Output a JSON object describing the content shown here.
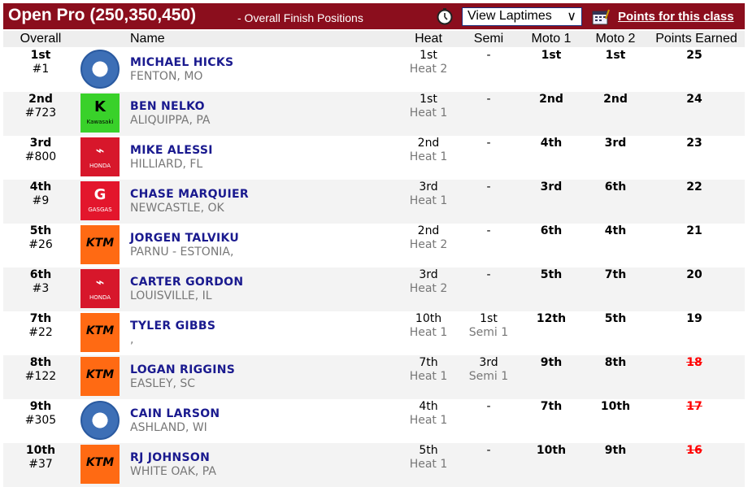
{
  "header": {
    "title": "Open Pro (250,350,450)",
    "subtitle": "- Overall Finish Positions",
    "laptimes_select": "View Laptimes",
    "points_link": "Points for this class"
  },
  "columns": [
    "Overall",
    "Name",
    "Heat",
    "Semi",
    "Moto 1",
    "Moto 2",
    "Points Earned"
  ],
  "colors": {
    "header_bg": "#8b0e1d",
    "name": "#1a1a8f",
    "dropped_points": "#ff0000"
  },
  "rows": [
    {
      "pos": "1st",
      "num": "#1",
      "brand": "yamaha",
      "name": "MICHAEL HICKS",
      "home": "FENTON, MO",
      "heat": "1st",
      "heat_sub": "Heat 2",
      "semi": "-",
      "semi_sub": "",
      "m1": "1st",
      "m2": "1st",
      "pts": "25",
      "dropped": false
    },
    {
      "pos": "2nd",
      "num": "#723",
      "brand": "kawasaki",
      "name": "BEN NELKO",
      "home": "ALIQUIPPA, PA",
      "heat": "1st",
      "heat_sub": "Heat 1",
      "semi": "-",
      "semi_sub": "",
      "m1": "2nd",
      "m2": "2nd",
      "pts": "24",
      "dropped": false
    },
    {
      "pos": "3rd",
      "num": "#800",
      "brand": "honda",
      "name": "MIKE ALESSI",
      "home": "HILLIARD, FL",
      "heat": "2nd",
      "heat_sub": "Heat 1",
      "semi": "-",
      "semi_sub": "",
      "m1": "4th",
      "m2": "3rd",
      "pts": "23",
      "dropped": false
    },
    {
      "pos": "4th",
      "num": "#9",
      "brand": "gasgas",
      "name": "CHASE MARQUIER",
      "home": "NEWCASTLE, OK",
      "heat": "3rd",
      "heat_sub": "Heat 1",
      "semi": "-",
      "semi_sub": "",
      "m1": "3rd",
      "m2": "6th",
      "pts": "22",
      "dropped": false
    },
    {
      "pos": "5th",
      "num": "#26",
      "brand": "ktm",
      "name": "JORGEN TALVIKU",
      "home": "PARNU - ESTONIA,",
      "heat": "2nd",
      "heat_sub": "Heat 2",
      "semi": "-",
      "semi_sub": "",
      "m1": "6th",
      "m2": "4th",
      "pts": "21",
      "dropped": false
    },
    {
      "pos": "6th",
      "num": "#3",
      "brand": "honda",
      "name": "CARTER GORDON",
      "home": "LOUISVILLE, IL",
      "heat": "3rd",
      "heat_sub": "Heat 2",
      "semi": "-",
      "semi_sub": "",
      "m1": "5th",
      "m2": "7th",
      "pts": "20",
      "dropped": false
    },
    {
      "pos": "7th",
      "num": "#22",
      "brand": "ktm",
      "name": "TYLER GIBBS",
      "home": ",",
      "heat": "10th",
      "heat_sub": "Heat 1",
      "semi": "1st",
      "semi_sub": "Semi 1",
      "m1": "12th",
      "m2": "5th",
      "pts": "19",
      "dropped": false
    },
    {
      "pos": "8th",
      "num": "#122",
      "brand": "ktm",
      "name": "LOGAN RIGGINS",
      "home": "EASLEY, SC",
      "heat": "7th",
      "heat_sub": "Heat 1",
      "semi": "3rd",
      "semi_sub": "Semi 1",
      "m1": "9th",
      "m2": "8th",
      "pts": "18",
      "dropped": true
    },
    {
      "pos": "9th",
      "num": "#305",
      "brand": "yamaha",
      "name": "CAIN LARSON",
      "home": "ASHLAND, WI",
      "heat": "4th",
      "heat_sub": "Heat 1",
      "semi": "-",
      "semi_sub": "",
      "m1": "7th",
      "m2": "10th",
      "pts": "17",
      "dropped": true
    },
    {
      "pos": "10th",
      "num": "#37",
      "brand": "ktm",
      "name": "RJ JOHNSON",
      "home": "WHITE OAK, PA",
      "heat": "5th",
      "heat_sub": "Heat 1",
      "semi": "-",
      "semi_sub": "",
      "m1": "10th",
      "m2": "9th",
      "pts": "16",
      "dropped": true
    }
  ],
  "brand_labels": {
    "kawasaki": "Kawasaki",
    "honda": "HONDA",
    "gasgas": "GASGAS",
    "ktm": "KTM"
  }
}
